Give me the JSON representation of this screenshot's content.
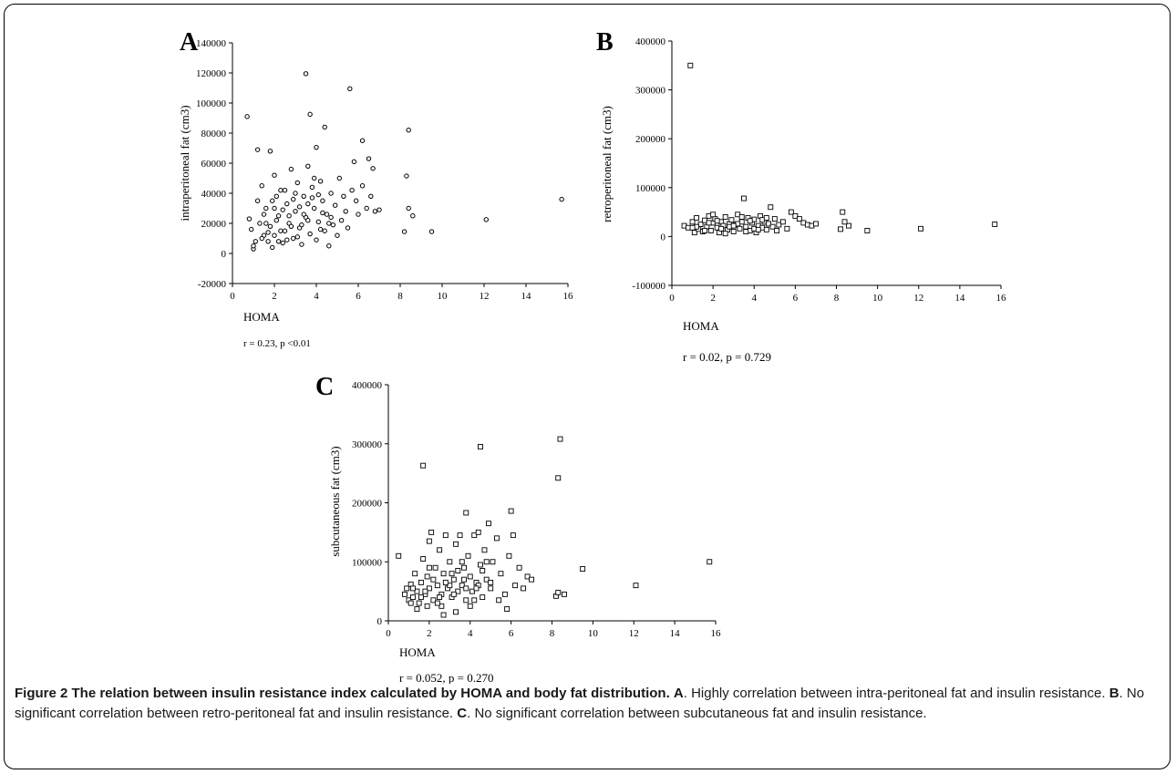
{
  "caption": {
    "title": "Figure 2 The relation between insulin resistance index calculated by HOMA and body fat distribution.",
    "parts": [
      {
        "label": "A",
        "text": ". Highly correlation between intra-peritoneal fat and insulin resistance."
      },
      {
        "label": "B",
        "text": ". No significant correlation between retro-peritoneal fat and insulin resistance."
      },
      {
        "label": "C",
        "text": ". No significant correlation between subcutaneous fat and insulin resistance."
      }
    ]
  },
  "chart_data": [
    {
      "panel": "A",
      "type": "scatter",
      "xlabel": "HOMA",
      "ylabel": "intraperitoneal fat (cm3)",
      "stat": "r = 0.23, p <0.01",
      "xlim": [
        0,
        16
      ],
      "ylim": [
        -20000,
        140000
      ],
      "xticks": [
        "0",
        "2",
        "4",
        "6",
        "8",
        "10",
        "12",
        "14",
        "16"
      ],
      "yticks": [
        "-20000",
        "0",
        "20000",
        "40000",
        "60000",
        "80000",
        "100000",
        "120000",
        "140000"
      ],
      "points": [
        [
          0.7,
          91000
        ],
        [
          1.2,
          69000
        ],
        [
          1.8,
          68000
        ],
        [
          3.5,
          119500
        ],
        [
          3.7,
          92500
        ],
        [
          4.4,
          84000
        ],
        [
          5.6,
          109500
        ],
        [
          6.2,
          75000
        ],
        [
          4.0,
          70500
        ],
        [
          8.4,
          82000
        ],
        [
          8.3,
          51500
        ],
        [
          15.7,
          36000
        ],
        [
          12.1,
          22500
        ],
        [
          9.5,
          14500
        ],
        [
          8.2,
          14500
        ],
        [
          8.6,
          25000
        ],
        [
          8.4,
          30000
        ],
        [
          6.5,
          63000
        ],
        [
          6.7,
          56500
        ],
        [
          5.8,
          61000
        ],
        [
          0.8,
          23000
        ],
        [
          0.9,
          16000
        ],
        [
          1.1,
          8000
        ],
        [
          1.0,
          3000
        ],
        [
          1.3,
          20000
        ],
        [
          1.4,
          45000
        ],
        [
          1.5,
          12000
        ],
        [
          1.6,
          30000
        ],
        [
          1.7,
          8000
        ],
        [
          1.8,
          18000
        ],
        [
          1.9,
          4000
        ],
        [
          2.0,
          52000
        ],
        [
          2.1,
          38000
        ],
        [
          2.2,
          25000
        ],
        [
          2.3,
          15000
        ],
        [
          2.4,
          7000
        ],
        [
          2.5,
          42000
        ],
        [
          2.6,
          33000
        ],
        [
          2.7,
          20000
        ],
        [
          2.8,
          56000
        ],
        [
          2.9,
          10000
        ],
        [
          3.0,
          28000
        ],
        [
          3.1,
          47000
        ],
        [
          3.2,
          17000
        ],
        [
          3.3,
          6000
        ],
        [
          3.4,
          38000
        ],
        [
          3.5,
          24000
        ],
        [
          3.6,
          58000
        ],
        [
          3.7,
          13000
        ],
        [
          3.8,
          44000
        ],
        [
          3.9,
          30000
        ],
        [
          4.0,
          9000
        ],
        [
          4.1,
          21000
        ],
        [
          4.2,
          48000
        ],
        [
          4.3,
          35000
        ],
        [
          4.4,
          15000
        ],
        [
          4.5,
          26000
        ],
        [
          4.6,
          5000
        ],
        [
          4.7,
          40000
        ],
        [
          4.8,
          19000
        ],
        [
          4.9,
          32000
        ],
        [
          5.0,
          12000
        ],
        [
          5.1,
          50000
        ],
        [
          5.2,
          22000
        ],
        [
          5.3,
          38000
        ],
        [
          5.4,
          28000
        ],
        [
          5.5,
          17000
        ],
        [
          5.7,
          42000
        ],
        [
          5.9,
          35000
        ],
        [
          6.0,
          26000
        ],
        [
          6.2,
          45000
        ],
        [
          6.4,
          30000
        ],
        [
          6.6,
          38000
        ],
        [
          6.8,
          28000
        ],
        [
          7.0,
          29000
        ],
        [
          1.2,
          35000
        ],
        [
          1.5,
          26000
        ],
        [
          2.0,
          12000
        ],
        [
          2.3,
          42000
        ],
        [
          2.6,
          9000
        ],
        [
          2.9,
          36000
        ],
        [
          3.2,
          31000
        ],
        [
          3.6,
          22000
        ],
        [
          3.9,
          50000
        ],
        [
          4.3,
          27000
        ],
        [
          4.6,
          20000
        ],
        [
          1.0,
          5000
        ],
        [
          1.4,
          10000
        ],
        [
          1.7,
          14000
        ],
        [
          2.1,
          22000
        ],
        [
          2.4,
          29000
        ],
        [
          2.8,
          18000
        ],
        [
          3.1,
          11000
        ],
        [
          3.4,
          26000
        ],
        [
          3.8,
          37000
        ],
        [
          4.2,
          16000
        ],
        [
          4.7,
          24000
        ],
        [
          2.0,
          30000
        ],
        [
          2.5,
          15000
        ],
        [
          3.0,
          40000
        ],
        [
          3.3,
          19000
        ],
        [
          3.6,
          33000
        ],
        [
          4.1,
          39000
        ],
        [
          2.2,
          8000
        ],
        [
          2.7,
          25000
        ],
        [
          1.6,
          20000
        ],
        [
          1.9,
          35000
        ]
      ]
    },
    {
      "panel": "B",
      "type": "scatter",
      "xlabel": "HOMA",
      "ylabel": "retroperitoneal fat (cm3)",
      "stat": "r = 0.02, p = 0.729",
      "xlim": [
        0,
        16
      ],
      "ylim": [
        -100000,
        400000
      ],
      "xticks": [
        "0",
        "2",
        "4",
        "6",
        "8",
        "10",
        "12",
        "14",
        "16"
      ],
      "yticks": [
        "-100000",
        "0",
        "100000",
        "200000",
        "300000",
        "400000"
      ],
      "points": [
        [
          0.9,
          350000
        ],
        [
          3.5,
          78000
        ],
        [
          4.8,
          60000
        ],
        [
          8.3,
          50000
        ],
        [
          15.7,
          25000
        ],
        [
          12.1,
          16000
        ],
        [
          9.5,
          12000
        ],
        [
          8.6,
          22000
        ],
        [
          8.4,
          30000
        ],
        [
          8.2,
          15000
        ],
        [
          0.6,
          22000
        ],
        [
          0.8,
          18000
        ],
        [
          1.0,
          30000
        ],
        [
          1.1,
          8000
        ],
        [
          1.2,
          38000
        ],
        [
          1.3,
          15000
        ],
        [
          1.4,
          25000
        ],
        [
          1.5,
          10000
        ],
        [
          1.6,
          33000
        ],
        [
          1.7,
          20000
        ],
        [
          1.8,
          42000
        ],
        [
          1.9,
          12000
        ],
        [
          2.0,
          28000
        ],
        [
          2.1,
          36000
        ],
        [
          2.2,
          18000
        ],
        [
          2.3,
          8000
        ],
        [
          2.4,
          30000
        ],
        [
          2.5,
          22000
        ],
        [
          2.6,
          40000
        ],
        [
          2.7,
          14000
        ],
        [
          2.8,
          26000
        ],
        [
          2.9,
          34000
        ],
        [
          3.0,
          10000
        ],
        [
          3.1,
          24000
        ],
        [
          3.2,
          45000
        ],
        [
          3.3,
          16000
        ],
        [
          3.4,
          30000
        ],
        [
          3.6,
          20000
        ],
        [
          3.7,
          38000
        ],
        [
          3.8,
          12000
        ],
        [
          3.9,
          28000
        ],
        [
          4.0,
          35000
        ],
        [
          4.1,
          8000
        ],
        [
          4.2,
          22000
        ],
        [
          4.3,
          42000
        ],
        [
          4.4,
          18000
        ],
        [
          4.5,
          30000
        ],
        [
          4.6,
          14000
        ],
        [
          4.7,
          26000
        ],
        [
          4.9,
          20000
        ],
        [
          5.0,
          36000
        ],
        [
          5.2,
          24000
        ],
        [
          5.4,
          30000
        ],
        [
          5.6,
          16000
        ],
        [
          5.8,
          50000
        ],
        [
          6.0,
          42000
        ],
        [
          6.2,
          36000
        ],
        [
          6.4,
          28000
        ],
        [
          6.6,
          24000
        ],
        [
          6.8,
          22000
        ],
        [
          7.0,
          26000
        ],
        [
          1.2,
          20000
        ],
        [
          1.6,
          12000
        ],
        [
          2.0,
          45000
        ],
        [
          2.4,
          16000
        ],
        [
          2.8,
          20000
        ],
        [
          3.2,
          26000
        ],
        [
          3.6,
          10000
        ],
        [
          4.0,
          16000
        ],
        [
          4.4,
          34000
        ],
        [
          1.0,
          18000
        ],
        [
          1.8,
          28000
        ],
        [
          2.2,
          32000
        ],
        [
          2.6,
          6000
        ],
        [
          3.0,
          22000
        ],
        [
          3.4,
          40000
        ],
        [
          3.8,
          32000
        ],
        [
          4.2,
          14000
        ],
        [
          4.6,
          38000
        ],
        [
          5.1,
          12000
        ]
      ]
    },
    {
      "panel": "C",
      "type": "scatter",
      "xlabel": "HOMA",
      "ylabel": "subcutaneous fat (cm3)",
      "stat": "r = 0.052, p = 0.270",
      "xlim": [
        0,
        16
      ],
      "ylim": [
        0,
        400000
      ],
      "xticks": [
        "0",
        "2",
        "4",
        "6",
        "8",
        "10",
        "12",
        "14",
        "16"
      ],
      "yticks": [
        "0",
        "100000",
        "200000",
        "300000",
        "400000"
      ],
      "points": [
        [
          1.7,
          263000
        ],
        [
          4.5,
          295000
        ],
        [
          8.4,
          308000
        ],
        [
          8.3,
          242000
        ],
        [
          6.0,
          186000
        ],
        [
          3.8,
          183000
        ],
        [
          15.7,
          100000
        ],
        [
          12.1,
          60000
        ],
        [
          9.5,
          88000
        ],
        [
          8.6,
          45000
        ],
        [
          8.2,
          42000
        ],
        [
          8.3,
          48000
        ],
        [
          0.5,
          110000
        ],
        [
          0.8,
          45000
        ],
        [
          0.9,
          55000
        ],
        [
          1.0,
          35000
        ],
        [
          1.1,
          62000
        ],
        [
          1.2,
          40000
        ],
        [
          1.3,
          80000
        ],
        [
          1.4,
          50000
        ],
        [
          1.5,
          30000
        ],
        [
          1.6,
          65000
        ],
        [
          1.7,
          105000
        ],
        [
          1.8,
          45000
        ],
        [
          1.9,
          75000
        ],
        [
          2.0,
          135000
        ],
        [
          2.0,
          55000
        ],
        [
          2.1,
          150000
        ],
        [
          2.2,
          35000
        ],
        [
          2.3,
          90000
        ],
        [
          2.4,
          60000
        ],
        [
          2.5,
          120000
        ],
        [
          2.6,
          45000
        ],
        [
          2.7,
          80000
        ],
        [
          2.8,
          145000
        ],
        [
          2.9,
          55000
        ],
        [
          3.0,
          100000
        ],
        [
          3.1,
          40000
        ],
        [
          3.2,
          70000
        ],
        [
          3.3,
          130000
        ],
        [
          3.4,
          50000
        ],
        [
          3.5,
          145000
        ],
        [
          3.6,
          60000
        ],
        [
          3.7,
          90000
        ],
        [
          3.8,
          35000
        ],
        [
          3.9,
          110000
        ],
        [
          4.0,
          75000
        ],
        [
          4.1,
          50000
        ],
        [
          4.2,
          145000
        ],
        [
          4.3,
          65000
        ],
        [
          4.4,
          150000
        ],
        [
          4.5,
          95000
        ],
        [
          4.6,
          40000
        ],
        [
          4.7,
          120000
        ],
        [
          4.8,
          70000
        ],
        [
          4.9,
          165000
        ],
        [
          5.0,
          55000
        ],
        [
          5.1,
          100000
        ],
        [
          5.3,
          140000
        ],
        [
          5.5,
          80000
        ],
        [
          5.7,
          45000
        ],
        [
          5.9,
          110000
        ],
        [
          6.1,
          145000
        ],
        [
          6.2,
          60000
        ],
        [
          6.4,
          90000
        ],
        [
          6.6,
          55000
        ],
        [
          6.8,
          75000
        ],
        [
          7.0,
          70000
        ],
        [
          1.1,
          30000
        ],
        [
          1.4,
          20000
        ],
        [
          1.8,
          50000
        ],
        [
          2.2,
          70000
        ],
        [
          2.6,
          25000
        ],
        [
          3.0,
          60000
        ],
        [
          3.4,
          85000
        ],
        [
          3.8,
          55000
        ],
        [
          4.2,
          35000
        ],
        [
          4.6,
          85000
        ],
        [
          5.0,
          65000
        ],
        [
          1.6,
          40000
        ],
        [
          2.0,
          90000
        ],
        [
          2.4,
          30000
        ],
        [
          2.8,
          65000
        ],
        [
          3.2,
          45000
        ],
        [
          3.6,
          100000
        ],
        [
          4.0,
          25000
        ],
        [
          4.4,
          60000
        ],
        [
          4.8,
          100000
        ],
        [
          5.4,
          35000
        ],
        [
          5.8,
          20000
        ],
        [
          2.7,
          10000
        ],
        [
          3.3,
          15000
        ],
        [
          1.2,
          55000
        ],
        [
          1.9,
          25000
        ],
        [
          2.5,
          40000
        ],
        [
          3.1,
          80000
        ],
        [
          3.7,
          70000
        ],
        [
          4.3,
          55000
        ]
      ]
    }
  ]
}
